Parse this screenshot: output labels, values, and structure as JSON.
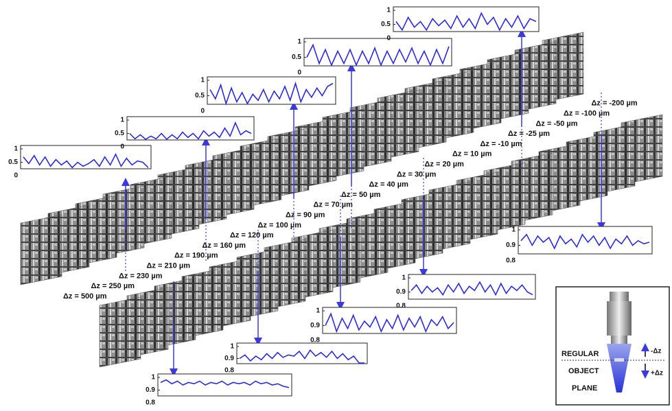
{
  "dz_labels": [
    "Δz = 500 µm",
    "Δz = 250 µm",
    "Δz = 230 µm",
    "Δz = 210 µm",
    "Δz = 190 µm",
    "Δz = 160 µm",
    "Δz = 120 µm",
    "Δz = 100 µm",
    "Δz = 90 µm",
    "Δz = 70 µm",
    "Δz = 50 µm",
    "Δz = 40 µm",
    "Δz = 30 µm",
    "Δz = 20 µm",
    "Δz = 10 µm",
    "Δz = -10 µm",
    "Δz = -25 µm",
    "Δz = -50 µm",
    "Δz = -100 µm",
    "Δz = -200 µm"
  ],
  "plots": [
    {
      "ylim": [
        0,
        1
      ],
      "yticks": [
        0,
        0.5,
        1
      ],
      "values": [
        0.7,
        0.45,
        0.75,
        0.4,
        0.7,
        0.35,
        0.6,
        0.4,
        0.55,
        0.3,
        0.5,
        0.35,
        0.45,
        0.6,
        0.35,
        0.7,
        0.4,
        0.8,
        0.35,
        0.65,
        0.4,
        0.55,
        0.5,
        0.3
      ]
    },
    {
      "ylim": [
        0,
        1
      ],
      "yticks": [
        0,
        0.5,
        1
      ],
      "values": [
        0.5,
        0.3,
        0.45,
        0.25,
        0.4,
        0.3,
        0.5,
        0.2,
        0.45,
        0.3,
        0.55,
        0.35,
        0.5,
        0.3,
        0.6,
        0.4,
        0.55,
        0.35,
        0.7,
        0.4,
        0.9,
        0.45,
        0.6,
        0.5
      ]
    },
    {
      "ylim": [
        0,
        1
      ],
      "yticks": [
        0,
        0.5,
        1
      ],
      "values": [
        0.7,
        0.4,
        0.85,
        0.2,
        0.75,
        0.3,
        0.6,
        0.15,
        0.55,
        0.35,
        0.7,
        0.3,
        0.65,
        0.4,
        0.8,
        0.35,
        0.9,
        0.3,
        0.7,
        0.45,
        0.75,
        0.5,
        0.8,
        0.9
      ]
    },
    {
      "ylim": [
        0,
        1
      ],
      "yticks": [
        0,
        0.5,
        1
      ],
      "values": [
        0.5,
        0.9,
        0.3,
        0.75,
        0.2,
        0.7,
        0.3,
        0.75,
        0.25,
        0.7,
        0.3,
        0.8,
        0.2,
        0.7,
        0.3,
        0.75,
        0.35,
        0.8,
        0.3,
        0.7,
        0.25,
        0.75,
        0.3,
        0.85
      ]
    },
    {
      "ylim": [
        0,
        1
      ],
      "yticks": [
        0,
        0.5,
        1
      ],
      "values": [
        0.6,
        0.3,
        0.75,
        0.4,
        0.6,
        0.3,
        0.7,
        0.45,
        0.65,
        0.35,
        0.8,
        0.4,
        0.7,
        0.35,
        0.9,
        0.5,
        0.75,
        0.3,
        0.7,
        0.4,
        0.8,
        0.35,
        0.7,
        0.6
      ]
    },
    {
      "ylim": [
        0.8,
        1
      ],
      "yticks": [
        0.8,
        0.9,
        1
      ],
      "values": [
        0.93,
        0.97,
        0.9,
        0.96,
        0.92,
        0.95,
        0.88,
        0.96,
        0.91,
        0.94,
        0.89,
        0.97,
        0.92,
        0.96,
        0.9,
        0.95,
        0.88,
        0.94,
        0.91,
        0.96,
        0.9,
        0.93,
        0.91,
        0.92
      ]
    },
    {
      "ylim": [
        0.8,
        1
      ],
      "yticks": [
        0.8,
        0.9,
        1
      ],
      "values": [
        0.91,
        0.95,
        0.89,
        0.94,
        0.9,
        0.93,
        0.88,
        0.95,
        0.9,
        0.96,
        0.89,
        0.94,
        0.91,
        0.97,
        0.9,
        0.95,
        0.88,
        0.96,
        0.89,
        0.94,
        0.91,
        0.95,
        0.9,
        0.88
      ]
    },
    {
      "ylim": [
        0.8,
        1
      ],
      "yticks": [
        0.8,
        0.9,
        1
      ],
      "values": [
        0.9,
        0.98,
        0.86,
        0.95,
        0.88,
        0.97,
        0.87,
        0.93,
        0.89,
        0.96,
        0.86,
        0.94,
        0.88,
        0.97,
        0.87,
        0.95,
        0.89,
        0.96,
        0.86,
        0.94,
        0.9,
        0.96,
        0.88,
        0.92
      ]
    },
    {
      "ylim": [
        0.8,
        1
      ],
      "yticks": [
        0.8,
        0.9,
        1
      ],
      "values": [
        0.9,
        0.93,
        0.88,
        0.92,
        0.89,
        0.94,
        0.9,
        0.95,
        0.91,
        0.93,
        0.92,
        0.96,
        0.9,
        0.97,
        0.92,
        0.95,
        0.91,
        0.96,
        0.9,
        0.94,
        0.89,
        0.92,
        0.86,
        0.84
      ]
    },
    {
      "ylim": [
        0.8,
        1
      ],
      "yticks": [
        0.8,
        0.9,
        1
      ],
      "values": [
        0.96,
        0.98,
        0.95,
        0.97,
        0.94,
        0.96,
        0.95,
        0.97,
        0.94,
        0.96,
        0.95,
        0.97,
        0.94,
        0.96,
        0.95,
        0.96,
        0.94,
        0.97,
        0.95,
        0.96,
        0.94,
        0.95,
        0.93,
        0.92
      ]
    }
  ],
  "inset": {
    "regular": "REGULAR",
    "object": "OBJECT",
    "plane": "PLANE",
    "minus_dz": "-Δz",
    "plus_dz": "+Δz"
  }
}
